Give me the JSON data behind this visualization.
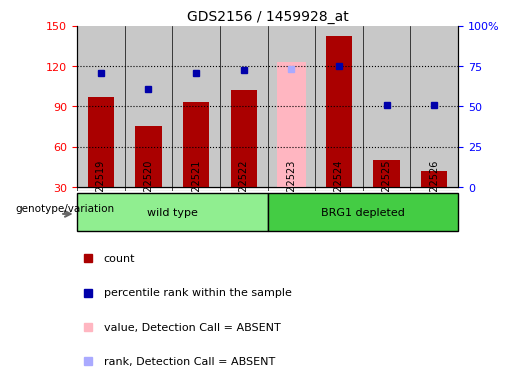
{
  "title": "GDS2156 / 1459928_at",
  "samples": [
    "GSM122519",
    "GSM122520",
    "GSM122521",
    "GSM122522",
    "GSM122523",
    "GSM122524",
    "GSM122525",
    "GSM122526"
  ],
  "counts": [
    97,
    75,
    93,
    102,
    null,
    142,
    50,
    42
  ],
  "counts_absent": [
    null,
    null,
    null,
    null,
    123,
    null,
    null,
    null
  ],
  "percentile_ranks": [
    115,
    103,
    115,
    117,
    null,
    120,
    91,
    91
  ],
  "percentile_ranks_absent": [
    null,
    null,
    null,
    null,
    118,
    null,
    null,
    null
  ],
  "groups": [
    {
      "label": "wild type",
      "indices": [
        0,
        1,
        2,
        3
      ],
      "color": "#90EE90"
    },
    {
      "label": "BRG1 depleted",
      "indices": [
        4,
        5,
        6,
        7
      ],
      "color": "#44CC44"
    }
  ],
  "ylim_left": [
    30,
    150
  ],
  "ylim_right": [
    0,
    100
  ],
  "yticks_left": [
    30,
    60,
    90,
    120,
    150
  ],
  "yticks_right": [
    0,
    25,
    50,
    75,
    100
  ],
  "ytick_labels_left": [
    "30",
    "60",
    "90",
    "120",
    "150"
  ],
  "ytick_labels_right": [
    "0",
    "25",
    "50",
    "75",
    "100%"
  ],
  "bar_color_present": "#AA0000",
  "bar_color_absent": "#FFB6C1",
  "dot_color_present": "#0000AA",
  "dot_color_absent": "#AAAAFF",
  "plot_bg_color": "#C8C8C8",
  "bar_width": 0.55,
  "genotype_label": "genotype/variation",
  "legend_items": [
    {
      "color": "#AA0000",
      "label": "count"
    },
    {
      "color": "#0000AA",
      "label": "percentile rank within the sample"
    },
    {
      "color": "#FFB6C1",
      "label": "value, Detection Call = ABSENT"
    },
    {
      "color": "#AAAAFF",
      "label": "rank, Detection Call = ABSENT"
    }
  ],
  "fig_width": 5.15,
  "fig_height": 3.84,
  "dpi": 100
}
